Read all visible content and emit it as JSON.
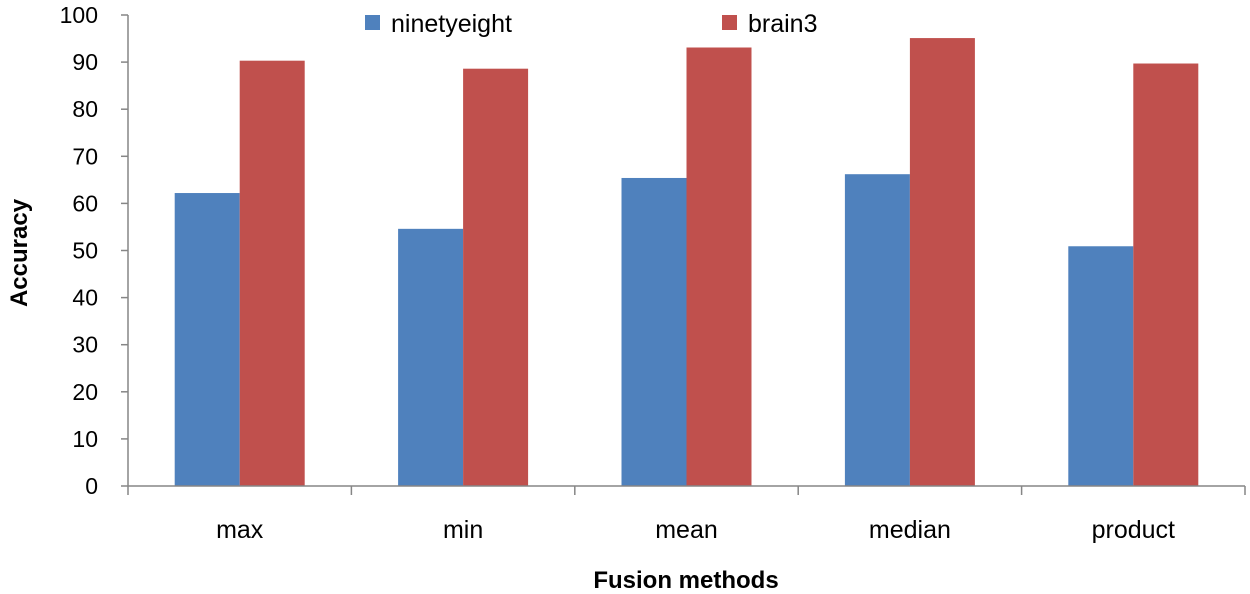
{
  "chart_data": {
    "type": "bar",
    "title": "",
    "xlabel": "Fusion methods",
    "ylabel": "Accuracy",
    "ylim": [
      0,
      100
    ],
    "ytick_step": 10,
    "categories": [
      "max",
      "min",
      "mean",
      "median",
      "product"
    ],
    "series": [
      {
        "name": "ninetyeight",
        "color": "#4f81bd",
        "values": [
          62.2,
          54.6,
          65.4,
          66.2,
          50.9
        ]
      },
      {
        "name": "brain3",
        "color": "#c0504d",
        "values": [
          90.3,
          88.6,
          93.1,
          95.1,
          89.7
        ]
      }
    ],
    "legend": "top-center",
    "grid": false
  }
}
